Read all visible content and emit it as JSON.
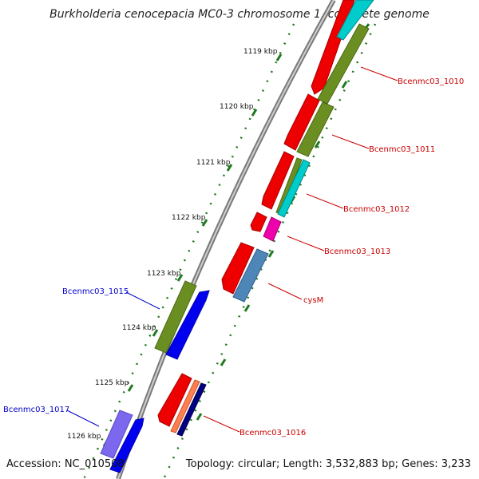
{
  "title": "Burkholderia cenocepacia MC0-3 chromosome 1, complete genome",
  "accession": "Accession: NC_010508",
  "topology": "Topology: circular; Length: 3,532,883 bp; Genes: 3,233",
  "colors": {
    "backbone": "#8a8a8a",
    "tick": "#1f7a1f",
    "label_forward": "#0000cc",
    "label_reverse": "#cc0000"
  },
  "kbp_labels": [
    "1119 kbp",
    "1120 kbp",
    "1121 kbp",
    "1122 kbp",
    "1123 kbp",
    "1124 kbp",
    "1125 kbp",
    "1126 kbp"
  ],
  "genes": [
    {
      "name": "Bcenmc03_1010",
      "strand": "reverse"
    },
    {
      "name": "Bcenmc03_1011",
      "strand": "reverse"
    },
    {
      "name": "Bcenmc03_1012",
      "strand": "reverse"
    },
    {
      "name": "Bcenmc03_1013",
      "strand": "reverse"
    },
    {
      "name": "cysM",
      "strand": "reverse"
    },
    {
      "name": "Bcenmc03_1015",
      "strand": "forward"
    },
    {
      "name": "Bcenmc03_1016",
      "strand": "reverse"
    },
    {
      "name": "Bcenmc03_1017",
      "strand": "forward"
    }
  ]
}
